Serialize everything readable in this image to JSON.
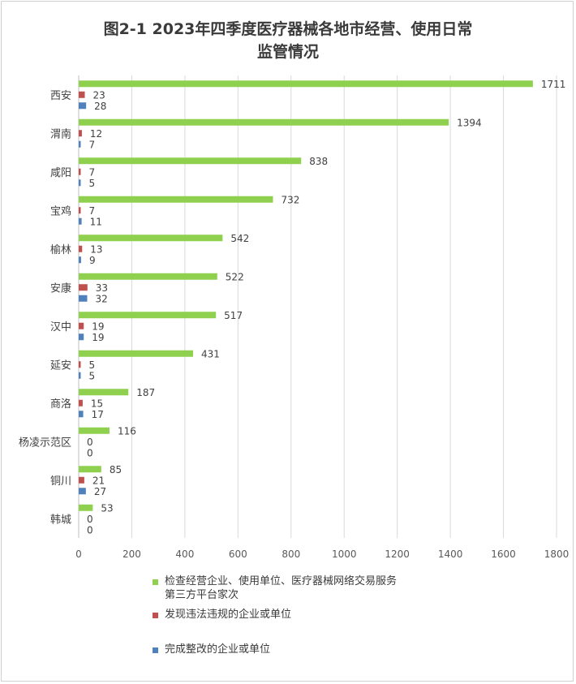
{
  "title": {
    "line1": "图2-1   2023年四季度医疗器械各地市经营、使用日常",
    "line2": "监管情况"
  },
  "chart_data": {
    "type": "bar",
    "orientation": "horizontal",
    "categories": [
      "西安",
      "渭南",
      "咸阳",
      "宝鸡",
      "榆林",
      "安康",
      "汉中",
      "延安",
      "商洛",
      "杨凌示范区",
      "铜川",
      "韩城"
    ],
    "series": [
      {
        "name": "检查经营企业、使用单位、医疗器械网络交易服务第三方平台家次",
        "color": "#8fd14f",
        "values": [
          1711,
          1394,
          838,
          732,
          542,
          522,
          517,
          431,
          187,
          116,
          85,
          53
        ]
      },
      {
        "name": "发现违法违规的企业或单位",
        "color": "#c0504d",
        "values": [
          23,
          12,
          7,
          7,
          13,
          33,
          19,
          5,
          15,
          0,
          21,
          0
        ]
      },
      {
        "name": "完成整改的企业或单位",
        "color": "#4f81bd",
        "values": [
          28,
          7,
          5,
          11,
          9,
          32,
          19,
          5,
          17,
          0,
          27,
          0
        ]
      }
    ],
    "xlim": [
      0,
      1800
    ],
    "xticks": [
      0,
      200,
      400,
      600,
      800,
      1000,
      1200,
      1400,
      1600,
      1800
    ],
    "gridlines": true,
    "legend_position": "bottom"
  },
  "legend": {
    "item1_line1": "检查经营企业、使用单位、医疗器械网络交易服务",
    "item1_line2": "第三方平台家次",
    "item2": "发现违法违规的企业或单位",
    "item3": "完成整改的企业或单位"
  }
}
